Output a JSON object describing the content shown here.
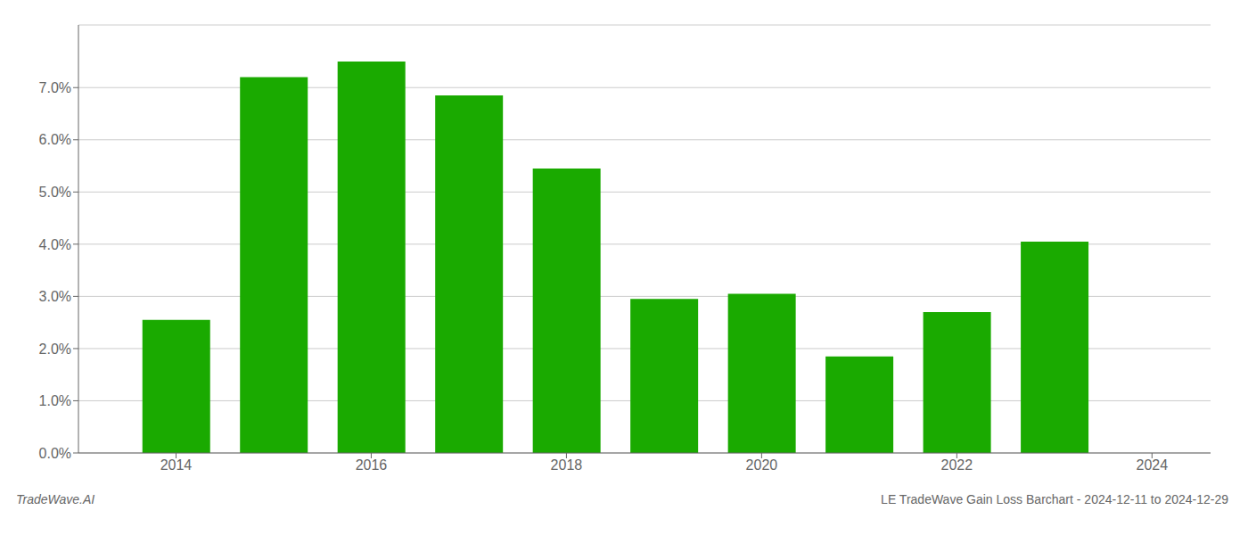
{
  "chart_data": {
    "type": "bar",
    "title": "LE TradeWave Gain Loss Barchart - 2024-12-11 to 2024-12-29",
    "annotations": [
      "TradeWave.AI"
    ],
    "x": [
      2014,
      2015,
      2016,
      2017,
      2018,
      2019,
      2020,
      2021,
      2022,
      2023
    ],
    "values": [
      0.0255,
      0.072,
      0.075,
      0.0685,
      0.0545,
      0.0295,
      0.0305,
      0.0185,
      0.027,
      0.0405
    ],
    "color": "#1aaa00",
    "xlim": [
      2013.0,
      2024.6
    ],
    "xticks": [
      2014,
      2016,
      2018,
      2020,
      2022,
      2024
    ],
    "ylim": [
      0,
      0.082
    ],
    "yticks": [
      {
        "value": 0.0,
        "label": "0.0%"
      },
      {
        "value": 0.01,
        "label": "1.0%"
      },
      {
        "value": 0.02,
        "label": "2.0%"
      },
      {
        "value": 0.03,
        "label": "3.0%"
      },
      {
        "value": 0.04,
        "label": "4.0%"
      },
      {
        "value": 0.05,
        "label": "5.0%"
      },
      {
        "value": 0.06,
        "label": "6.0%"
      },
      {
        "value": 0.07,
        "label": "7.0%"
      }
    ],
    "grid": true
  }
}
